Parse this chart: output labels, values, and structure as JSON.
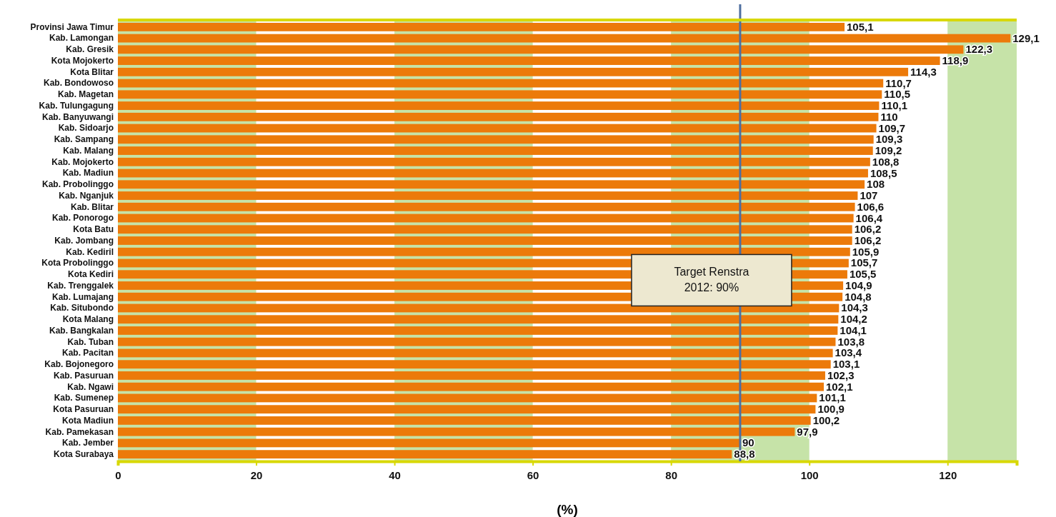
{
  "chart_data": {
    "type": "bar",
    "orientation": "horizontal",
    "xlabel": "(%)",
    "categories": [
      "Provinsi Jawa Timur",
      "Kab. Lamongan",
      "Kab. Gresik",
      "Kota Mojokerto",
      "Kota Blitar",
      "Kab. Bondowoso",
      "Kab. Magetan",
      "Kab. Tulungagung",
      "Kab. Banyuwangi",
      "Kab. Sidoarjo",
      "Kab. Sampang",
      "Kab. Malang",
      "Kab. Mojokerto",
      "Kab. Madiun",
      "Kab. Probolinggo",
      "Kab. Nganjuk",
      "Kab. Blitar",
      "Kab. Ponorogo",
      "Kota Batu",
      "Kab. Jombang",
      "Kab. Kediril",
      "Kota Probolinggo",
      "Kota Kediri",
      "Kab. Trenggalek",
      "Kab. Lumajang",
      "Kab. Situbondo",
      "Kota Malang",
      "Kab. Bangkalan",
      "Kab. Tuban",
      "Kab. Pacitan",
      "Kab. Bojonegoro",
      "Kab. Pasuruan",
      "Kab. Ngawi",
      "Kab. Sumenep",
      "Kota Pasuruan",
      "Kota Madiun",
      "Kab. Pamekasan",
      "Kab. Jember",
      "Kota Surabaya"
    ],
    "values": [
      105.1,
      129.1,
      122.3,
      118.9,
      114.3,
      110.7,
      110.5,
      110.1,
      110,
      109.7,
      109.3,
      109.2,
      108.8,
      108.5,
      108,
      107,
      106.6,
      106.4,
      106.2,
      106.2,
      105.9,
      105.7,
      105.5,
      104.9,
      104.8,
      104.3,
      104.2,
      104.1,
      103.8,
      103.4,
      103.1,
      102.3,
      102.1,
      101.1,
      100.9,
      100.2,
      97.9,
      90,
      88.8
    ],
    "value_labels": [
      "105,1",
      "129,1",
      "122,3",
      "118,9",
      "114,3",
      "110,7",
      "110,5",
      "110,1",
      "110",
      "109,7",
      "109,3",
      "109,2",
      "108,8",
      "108,5",
      "108",
      "107",
      "106,6",
      "106,4",
      "106,2",
      "106,2",
      "105,9",
      "105,7",
      "105,5",
      "104,9",
      "104,8",
      "104,3",
      "104,2",
      "104,1",
      "103,8",
      "103,4",
      "103,1",
      "102,3",
      "102,1",
      "101,1",
      "100,9",
      "100,2",
      "97,9",
      "90",
      "88,8"
    ],
    "color": "#ec7a0a",
    "xlim": [
      0,
      130
    ],
    "xticks": [
      0,
      20,
      40,
      60,
      80,
      100,
      120
    ],
    "bands": [
      {
        "axis": "x",
        "from": 0,
        "to": 20,
        "color": "#c6e3a8"
      },
      {
        "axis": "x",
        "from": 40,
        "to": 60,
        "color": "#c6e3a8"
      },
      {
        "axis": "x",
        "from": 80,
        "to": 100,
        "color": "#c6e3a8"
      },
      {
        "axis": "x",
        "from": 120,
        "to": 130,
        "color": "#c6e3a8"
      }
    ],
    "ref_lines": [
      {
        "axis": "x",
        "value": 90,
        "label": "Target Renstra 2012: 90%",
        "color": "#4f6fa0"
      }
    ]
  }
}
